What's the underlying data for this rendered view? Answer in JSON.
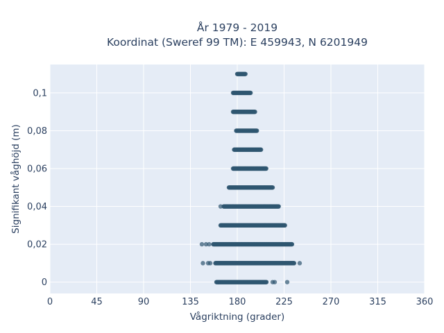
{
  "chart_data": {
    "type": "scatter",
    "title_lines": [
      "År 1979 - 2019",
      "Koordinat (Sweref 99 TM): E 459943, N 6201949"
    ],
    "xlabel": "Vågriktning (grader)",
    "ylabel": "Signifikant våghöjd (m)",
    "xlim": [
      0,
      360
    ],
    "ylim": [
      -0.006,
      0.115
    ],
    "xticks": [
      0,
      45,
      90,
      135,
      180,
      225,
      270,
      315,
      360
    ],
    "xtick_labels": [
      "0",
      "45",
      "90",
      "135",
      "180",
      "225",
      "270",
      "315",
      "360"
    ],
    "yticks": [
      0,
      0.02,
      0.04,
      0.06,
      0.08,
      0.1
    ],
    "ytick_labels": [
      "0",
      "0,02",
      "0,04",
      "0,06",
      "0,08",
      "0,1"
    ],
    "grid": true,
    "marker_color": "#2f5670",
    "bands": [
      {
        "y": 0.0,
        "x_min": 160,
        "x_max": 208,
        "outliers": [
          162,
          214,
          216,
          228
        ]
      },
      {
        "y": 0.01,
        "x_min": 159,
        "x_max": 235,
        "outliers": [
          147,
          152,
          154,
          240
        ]
      },
      {
        "y": 0.02,
        "x_min": 157,
        "x_max": 233,
        "outliers": [
          146,
          150,
          153
        ]
      },
      {
        "y": 0.03,
        "x_min": 164,
        "x_max": 226,
        "outliers": []
      },
      {
        "y": 0.04,
        "x_min": 167,
        "x_max": 220,
        "outliers": [
          164
        ]
      },
      {
        "y": 0.05,
        "x_min": 172,
        "x_max": 214,
        "outliers": []
      },
      {
        "y": 0.06,
        "x_min": 176,
        "x_max": 208,
        "outliers": []
      },
      {
        "y": 0.07,
        "x_min": 177,
        "x_max": 203,
        "outliers": []
      },
      {
        "y": 0.08,
        "x_min": 179,
        "x_max": 199,
        "outliers": []
      },
      {
        "y": 0.09,
        "x_min": 176,
        "x_max": 197,
        "outliers": []
      },
      {
        "y": 0.1,
        "x_min": 176,
        "x_max": 193,
        "outliers": []
      },
      {
        "y": 0.11,
        "x_min": 180,
        "x_max": 188,
        "outliers": []
      }
    ]
  }
}
